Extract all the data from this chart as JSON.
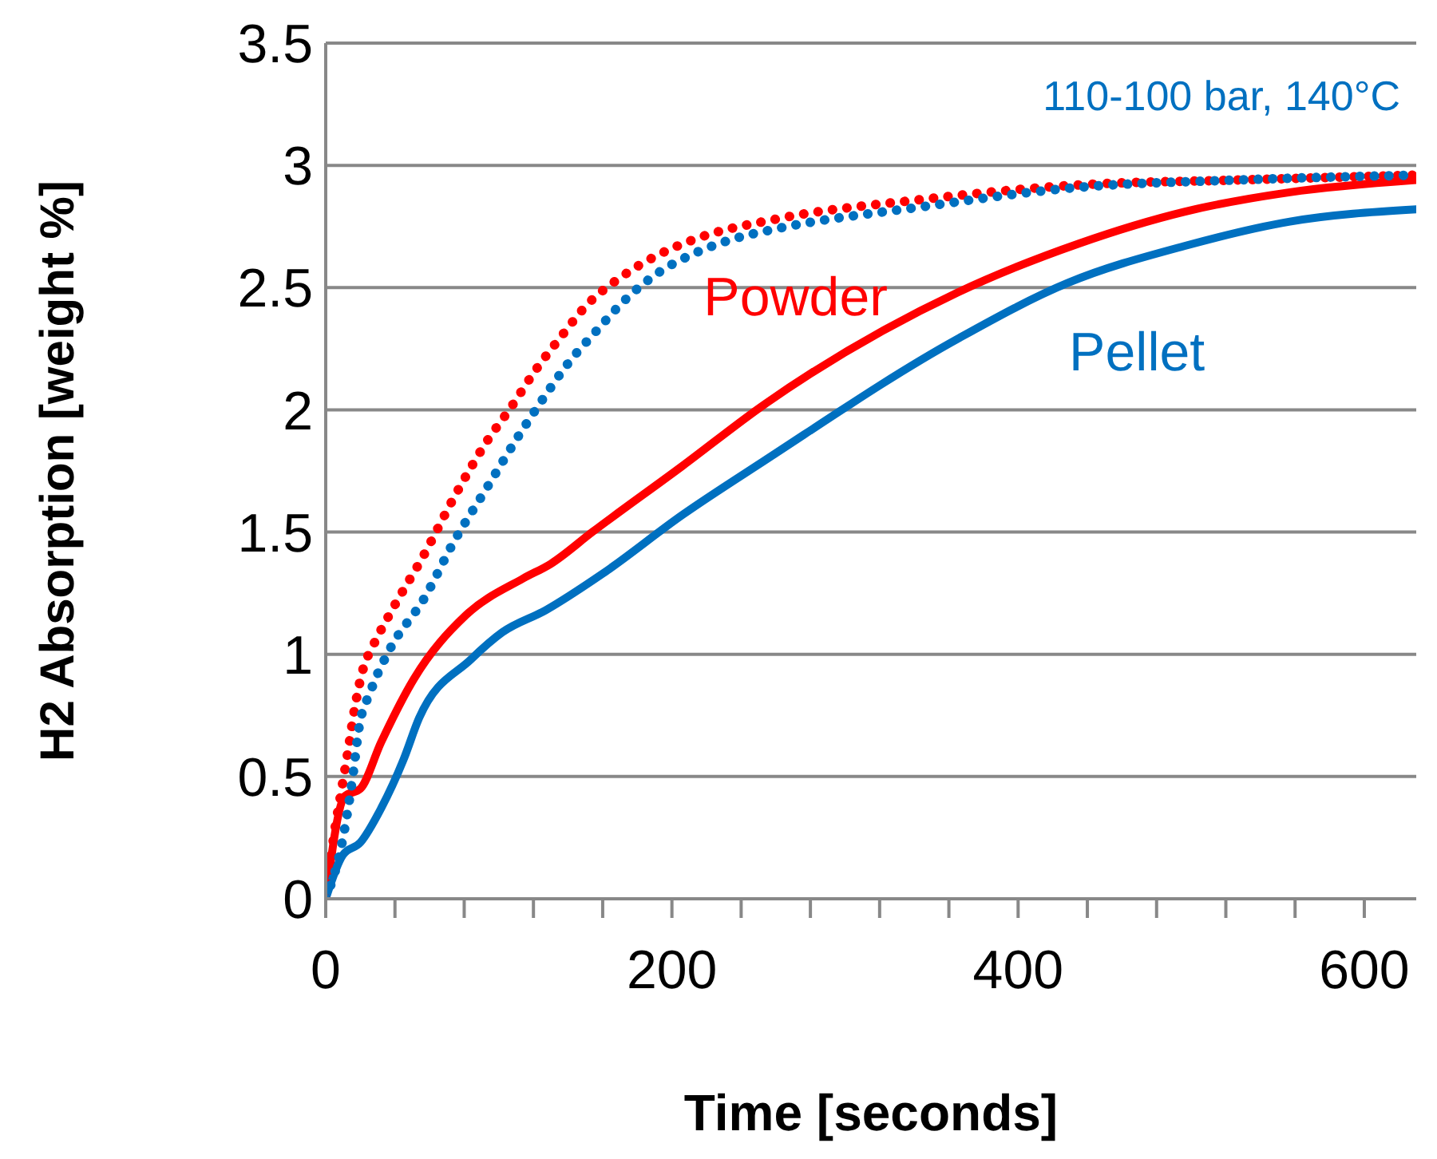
{
  "chart_data": {
    "type": "line",
    "xlabel": "Time [seconds]",
    "ylabel": "H2 Absorption [weight %]",
    "xlim": [
      0,
      630
    ],
    "ylim": [
      0,
      3.5
    ],
    "xticks": [
      0,
      {
        "value": 40,
        "label": null
      },
      {
        "value": 80,
        "label": null
      },
      {
        "value": 120,
        "label": null
      },
      {
        "value": 160,
        "label": null
      },
      200,
      {
        "value": 240,
        "label": null
      },
      {
        "value": 280,
        "label": null
      },
      {
        "value": 320,
        "label": null
      },
      {
        "value": 360,
        "label": null
      },
      400,
      {
        "value": 440,
        "label": null
      },
      {
        "value": 480,
        "label": null
      },
      {
        "value": 520,
        "label": null
      },
      {
        "value": 560,
        "label": null
      },
      600
    ],
    "yticks": [
      0,
      0.5,
      1,
      1.5,
      2,
      2.5,
      3,
      3.5
    ],
    "grid": "y",
    "legend": false,
    "marker": "none",
    "series": [
      {
        "name": "Powder",
        "color": "#ff0000",
        "line_style": "solid",
        "x": [
          0,
          11,
          20,
          32,
          51,
          81,
          114,
          130,
          154,
          206,
          253,
          365,
          435,
          496,
          557,
          630
        ],
        "values": [
          0,
          0.42,
          0.45,
          0.64,
          0.9,
          1.16,
          1.31,
          1.37,
          1.5,
          1.77,
          2.02,
          2.48,
          2.68,
          2.81,
          2.89,
          2.94
        ]
      },
      {
        "name": "Pellet",
        "color": "#0070c0",
        "line_style": "solid",
        "x": [
          0,
          10,
          20,
          32,
          45,
          54,
          84,
          102,
          127,
          160,
          206,
          253,
          365,
          429,
          496,
          557,
          630
        ],
        "values": [
          0,
          0.18,
          0.23,
          0.37,
          0.57,
          0.74,
          0.98,
          1.09,
          1.18,
          1.33,
          1.57,
          1.79,
          2.29,
          2.52,
          2.67,
          2.77,
          2.82
        ]
      },
      {
        "color": "#ff0000",
        "line_style": "dotted",
        "x": [
          0,
          5,
          9,
          13,
          17,
          22,
          27,
          39,
          57,
          74,
          93,
          107,
          121,
          136,
          151,
          170,
          191,
          214,
          260,
          344,
          435,
          526,
          630
        ],
        "values": [
          0,
          0.27,
          0.44,
          0.61,
          0.79,
          0.95,
          1.03,
          1.19,
          1.41,
          1.64,
          1.87,
          2.01,
          2.16,
          2.3,
          2.43,
          2.54,
          2.63,
          2.7,
          2.78,
          2.86,
          2.92,
          2.94,
          2.96
        ]
      },
      {
        "color": "#0070c0",
        "line_style": "dotted",
        "x": [
          0,
          10,
          16,
          19,
          26,
          37,
          57,
          74,
          93,
          112,
          126,
          140,
          156,
          173,
          192,
          213,
          236,
          260,
          344,
          435,
          526,
          630
        ],
        "values": [
          0,
          0.25,
          0.52,
          0.69,
          0.85,
          1.02,
          1.23,
          1.46,
          1.68,
          1.9,
          2.05,
          2.19,
          2.32,
          2.45,
          2.56,
          2.64,
          2.7,
          2.74,
          2.83,
          2.91,
          2.94,
          2.96
        ]
      }
    ],
    "annotations": [
      "110-100 bar, 140°C"
    ]
  }
}
